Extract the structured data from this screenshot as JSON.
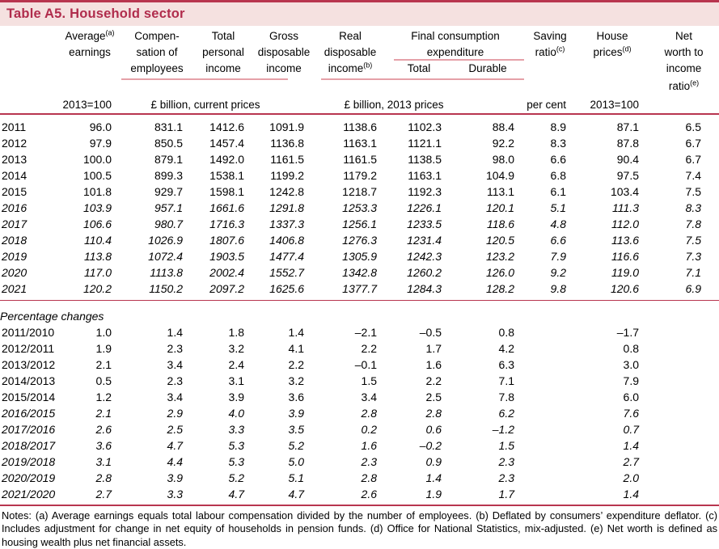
{
  "title": "Table A5. Household sector",
  "colors": {
    "accent_red": "#b8354f",
    "title_red": "#b02c4c",
    "header_bar_bg": "#f5e1e0",
    "pink_rule": "#e5a0a8"
  },
  "header": {
    "avg": {
      "line1": "Average",
      "sup": "(a)",
      "line2": "earnings",
      "unit": "2013=100"
    },
    "comp": {
      "line1": "Compen-",
      "line2": "sation of",
      "line3": "employees"
    },
    "tpi": {
      "line1": "Total",
      "line2": "personal",
      "line3": "income"
    },
    "gdi": {
      "line1": "Gross",
      "line2": "disposable",
      "line3": "income"
    },
    "rdi": {
      "line1": "Real",
      "line2": "disposable",
      "line3": "income",
      "sup": "(b)"
    },
    "fce": {
      "line1": "Final consumption",
      "line2": "expenditure",
      "total": "Total",
      "durable": "Durable"
    },
    "saving": {
      "line1": "Saving",
      "line2": "ratio",
      "sup": "(c)",
      "unit": "per cent"
    },
    "house": {
      "line1": "House",
      "line2": "prices",
      "sup": "(d)",
      "unit": "2013=100"
    },
    "networth": {
      "line1": "Net",
      "line2": "worth to",
      "line3": "income",
      "line4": "ratio",
      "sup": "(e)"
    },
    "unit_current": "£ billion, current prices",
    "unit_2013": "£ billion, 2013 prices"
  },
  "levels_rows": [
    {
      "label": "2011",
      "italic": false,
      "values": [
        "96.0",
        "831.1",
        "1412.6",
        "1091.9",
        "1138.6",
        "1102.3",
        "88.4",
        "8.9",
        "87.1",
        "6.5"
      ]
    },
    {
      "label": "2012",
      "italic": false,
      "values": [
        "97.9",
        "850.5",
        "1457.4",
        "1136.8",
        "1163.1",
        "1121.1",
        "92.2",
        "8.3",
        "87.8",
        "6.7"
      ]
    },
    {
      "label": "2013",
      "italic": false,
      "values": [
        "100.0",
        "879.1",
        "1492.0",
        "1161.5",
        "1161.5",
        "1138.5",
        "98.0",
        "6.6",
        "90.4",
        "6.7"
      ]
    },
    {
      "label": "2014",
      "italic": false,
      "values": [
        "100.5",
        "899.3",
        "1538.1",
        "1199.2",
        "1179.2",
        "1163.1",
        "104.9",
        "6.8",
        "97.5",
        "7.4"
      ]
    },
    {
      "label": "2015",
      "italic": false,
      "values": [
        "101.8",
        "929.7",
        "1598.1",
        "1242.8",
        "1218.7",
        "1192.3",
        "113.1",
        "6.1",
        "103.4",
        "7.5"
      ]
    },
    {
      "label": "2016",
      "italic": true,
      "values": [
        "103.9",
        "957.1",
        "1661.6",
        "1291.8",
        "1253.3",
        "1226.1",
        "120.1",
        "5.1",
        "111.3",
        "8.3"
      ]
    },
    {
      "label": "2017",
      "italic": true,
      "values": [
        "106.6",
        "980.7",
        "1716.3",
        "1337.3",
        "1256.1",
        "1233.5",
        "118.6",
        "4.8",
        "112.0",
        "7.8"
      ]
    },
    {
      "label": "2018",
      "italic": true,
      "values": [
        "110.4",
        "1026.9",
        "1807.6",
        "1406.8",
        "1276.3",
        "1231.4",
        "120.5",
        "6.6",
        "113.6",
        "7.5"
      ]
    },
    {
      "label": "2019",
      "italic": true,
      "values": [
        "113.8",
        "1072.4",
        "1903.5",
        "1477.4",
        "1305.9",
        "1242.3",
        "123.2",
        "7.9",
        "116.6",
        "7.3"
      ]
    },
    {
      "label": "2020",
      "italic": true,
      "values": [
        "117.0",
        "1113.8",
        "2002.4",
        "1552.7",
        "1342.8",
        "1260.2",
        "126.0",
        "9.2",
        "119.0",
        "7.1"
      ]
    },
    {
      "label": "2021",
      "italic": true,
      "values": [
        "120.2",
        "1150.2",
        "2097.2",
        "1625.6",
        "1377.7",
        "1284.3",
        "128.2",
        "9.8",
        "120.6",
        "6.9"
      ]
    }
  ],
  "pct_section_label": "Percentage changes",
  "pct_rows": [
    {
      "label": "2011/2010",
      "italic": false,
      "values": [
        "1.0",
        "1.4",
        "1.8",
        "1.4",
        "–2.1",
        "–0.5",
        "0.8",
        "",
        "–1.7",
        ""
      ]
    },
    {
      "label": "2012/2011",
      "italic": false,
      "values": [
        "1.9",
        "2.3",
        "3.2",
        "4.1",
        "2.2",
        "1.7",
        "4.2",
        "",
        "0.8",
        ""
      ]
    },
    {
      "label": "2013/2012",
      "italic": false,
      "values": [
        "2.1",
        "3.4",
        "2.4",
        "2.2",
        "–0.1",
        "1.6",
        "6.3",
        "",
        "3.0",
        ""
      ]
    },
    {
      "label": "2014/2013",
      "italic": false,
      "values": [
        "0.5",
        "2.3",
        "3.1",
        "3.2",
        "1.5",
        "2.2",
        "7.1",
        "",
        "7.9",
        ""
      ]
    },
    {
      "label": "2015/2014",
      "italic": false,
      "values": [
        "1.2",
        "3.4",
        "3.9",
        "3.6",
        "3.4",
        "2.5",
        "7.8",
        "",
        "6.0",
        ""
      ]
    },
    {
      "label": "2016/2015",
      "italic": true,
      "values": [
        "2.1",
        "2.9",
        "4.0",
        "3.9",
        "2.8",
        "2.8",
        "6.2",
        "",
        "7.6",
        ""
      ]
    },
    {
      "label": "2017/2016",
      "italic": true,
      "values": [
        "2.6",
        "2.5",
        "3.3",
        "3.5",
        "0.2",
        "0.6",
        "–1.2",
        "",
        "0.7",
        ""
      ]
    },
    {
      "label": "2018/2017",
      "italic": true,
      "values": [
        "3.6",
        "4.7",
        "5.3",
        "5.2",
        "1.6",
        "–0.2",
        "1.5",
        "",
        "1.4",
        ""
      ]
    },
    {
      "label": "2019/2018",
      "italic": true,
      "values": [
        "3.1",
        "4.4",
        "5.3",
        "5.0",
        "2.3",
        "0.9",
        "2.3",
        "",
        "2.7",
        ""
      ]
    },
    {
      "label": "2020/2019",
      "italic": true,
      "values": [
        "2.8",
        "3.9",
        "5.2",
        "5.1",
        "2.8",
        "1.4",
        "2.3",
        "",
        "2.0",
        ""
      ]
    },
    {
      "label": "2021/2020",
      "italic": true,
      "values": [
        "2.7",
        "3.3",
        "4.7",
        "4.7",
        "2.6",
        "1.9",
        "1.7",
        "",
        "1.4",
        ""
      ]
    }
  ],
  "notes": "Notes: (a) Average earnings equals total labour compensation divided by the number of employees. (b) Deflated by consumers’ expenditure deflator. (c) Includes adjustment for change in net equity of households in pension funds. (d) Office for National Statistics, mix-adjusted. (e) Net worth is defined as housing wealth plus net financial assets."
}
